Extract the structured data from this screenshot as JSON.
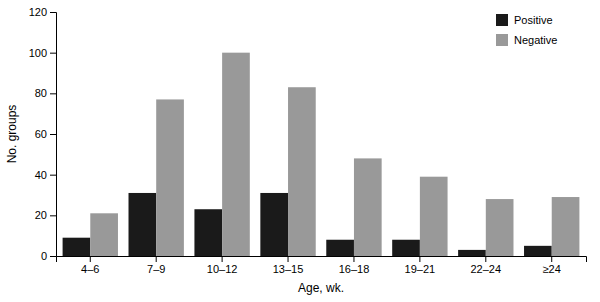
{
  "chart_data": {
    "type": "bar",
    "categories": [
      "4–6",
      "7–9",
      "10–12",
      "13–15",
      "16–18",
      "19–21",
      "22–24",
      "≥24"
    ],
    "series": [
      {
        "name": "Positive",
        "color": "#1a1a1a",
        "values": [
          9,
          31,
          23,
          31,
          8,
          8,
          3,
          5
        ]
      },
      {
        "name": "Negative",
        "color": "#999999",
        "values": [
          21,
          77,
          100,
          83,
          48,
          39,
          28,
          29
        ]
      }
    ],
    "xlabel": "Age, wk.",
    "ylabel": "No. groups",
    "ylim": [
      0,
      120
    ],
    "yticks": [
      0,
      20,
      40,
      60,
      80,
      100,
      120
    ],
    "legend": "upper right",
    "grid": false
  }
}
